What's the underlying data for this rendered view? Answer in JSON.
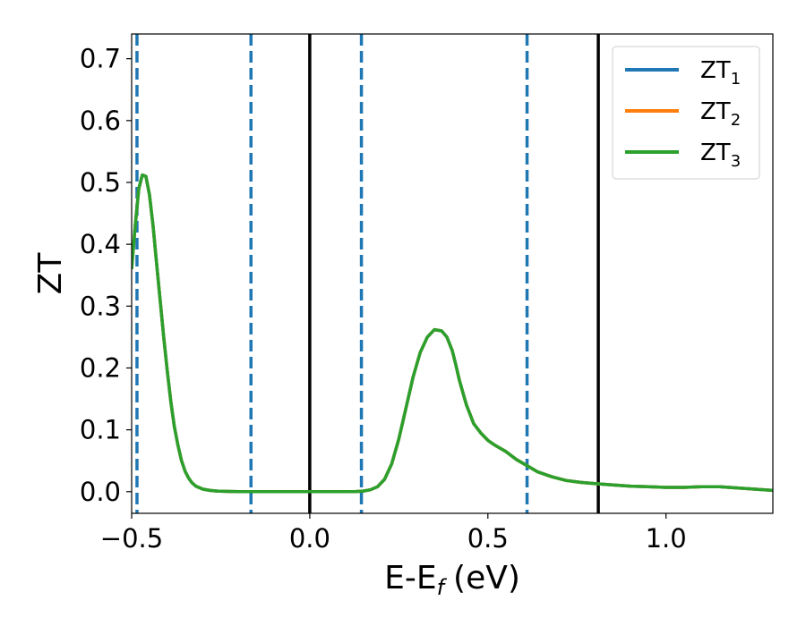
{
  "chart_data": {
    "type": "line",
    "xlabel": "E-E",
    "xlabel_sub": "f",
    "xlabel_unit": "(eV)",
    "ylabel": "ZT",
    "xlim": [
      -0.5,
      1.3
    ],
    "ylim": [
      -0.035,
      0.74
    ],
    "xticks": [
      {
        "value": -0.5,
        "label": "−0.5"
      },
      {
        "value": 0.0,
        "label": "0.0"
      },
      {
        "value": 0.5,
        "label": "0.5"
      },
      {
        "value": 1.0,
        "label": "1.0"
      }
    ],
    "yticks": [
      {
        "value": 0.0,
        "label": "0.0"
      },
      {
        "value": 0.1,
        "label": "0.1"
      },
      {
        "value": 0.2,
        "label": "0.2"
      },
      {
        "value": 0.3,
        "label": "0.3"
      },
      {
        "value": 0.4,
        "label": "0.4"
      },
      {
        "value": 0.5,
        "label": "0.5"
      },
      {
        "value": 0.6,
        "label": "0.6"
      },
      {
        "value": 0.7,
        "label": "0.7"
      }
    ],
    "grid": false,
    "legend_position": "top-right",
    "vlines_dashed": [
      -0.485,
      -0.165,
      0.145,
      0.61
    ],
    "vlines_solid": [
      0.0,
      0.81
    ],
    "vline_dashed_color": "#1f77b4",
    "vline_solid_color": "#000000",
    "series": [
      {
        "name": "ZT",
        "sub": "1",
        "color": "#1f77b4"
      },
      {
        "name": "ZT",
        "sub": "2",
        "color": "#ff7f0e"
      },
      {
        "name": "ZT",
        "sub": "3",
        "color": "#2ca02c",
        "x": [
          -0.5,
          -0.49,
          -0.48,
          -0.47,
          -0.46,
          -0.45,
          -0.44,
          -0.43,
          -0.42,
          -0.41,
          -0.4,
          -0.39,
          -0.38,
          -0.37,
          -0.36,
          -0.35,
          -0.34,
          -0.33,
          -0.32,
          -0.3,
          -0.28,
          -0.26,
          -0.24,
          -0.2,
          -0.15,
          -0.1,
          0.0,
          0.1,
          0.13,
          0.15,
          0.17,
          0.19,
          0.21,
          0.23,
          0.25,
          0.27,
          0.29,
          0.31,
          0.33,
          0.35,
          0.37,
          0.385,
          0.4,
          0.41,
          0.42,
          0.43,
          0.44,
          0.45,
          0.46,
          0.48,
          0.5,
          0.52,
          0.55,
          0.58,
          0.61,
          0.64,
          0.68,
          0.72,
          0.76,
          0.8,
          0.85,
          0.9,
          0.95,
          1.0,
          1.05,
          1.1,
          1.15,
          1.2,
          1.25,
          1.3
        ],
        "y": [
          0.36,
          0.43,
          0.49,
          0.512,
          0.51,
          0.48,
          0.43,
          0.37,
          0.31,
          0.25,
          0.195,
          0.145,
          0.105,
          0.075,
          0.05,
          0.033,
          0.022,
          0.014,
          0.009,
          0.004,
          0.002,
          0.001,
          0.0005,
          0.0002,
          0.0001,
          0.0,
          0.0,
          0.0001,
          0.0003,
          0.001,
          0.003,
          0.008,
          0.02,
          0.045,
          0.085,
          0.135,
          0.185,
          0.225,
          0.25,
          0.262,
          0.26,
          0.25,
          0.228,
          0.205,
          0.18,
          0.16,
          0.14,
          0.125,
          0.11,
          0.095,
          0.083,
          0.075,
          0.065,
          0.052,
          0.042,
          0.032,
          0.024,
          0.018,
          0.015,
          0.013,
          0.011,
          0.009,
          0.008,
          0.007,
          0.007,
          0.008,
          0.008,
          0.006,
          0.004,
          0.002
        ]
      }
    ]
  }
}
